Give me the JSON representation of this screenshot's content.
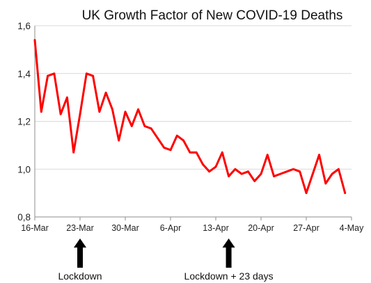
{
  "chart_data": {
    "type": "line",
    "title": "UK Growth Factor of New COVID-19 Deaths",
    "xlabel": "",
    "ylabel": "",
    "ylim": [
      0.8,
      1.6
    ],
    "yticks": [
      "0,8",
      "1,0",
      "1,2",
      "1,4",
      "1,6"
    ],
    "ytick_values": [
      0.8,
      1.0,
      1.2,
      1.4,
      1.6
    ],
    "xlim": [
      0,
      49
    ],
    "xticks": [
      {
        "day": 0,
        "label": "16-Mar"
      },
      {
        "day": 7,
        "label": "23-Mar"
      },
      {
        "day": 14,
        "label": "30-Mar"
      },
      {
        "day": 21,
        "label": "6-Apr"
      },
      {
        "day": 28,
        "label": "13-Apr"
      },
      {
        "day": 35,
        "label": "20-Apr"
      },
      {
        "day": 42,
        "label": "27-Apr"
      },
      {
        "day": 49,
        "label": "4-May"
      }
    ],
    "grid": true,
    "legend": "none",
    "series": [
      {
        "color": "#ff0000",
        "x": [
          0,
          1,
          2,
          3,
          4,
          5,
          6,
          7,
          8,
          9,
          10,
          11,
          12,
          13,
          14,
          15,
          16,
          17,
          18,
          19,
          20,
          21,
          22,
          23,
          24,
          25,
          26,
          27,
          28,
          29,
          30,
          31,
          32,
          33,
          34,
          35,
          36,
          37,
          38,
          39,
          40,
          41,
          42,
          43,
          44,
          45,
          46,
          47,
          48
        ],
        "values": [
          1.54,
          1.24,
          1.39,
          1.4,
          1.23,
          1.3,
          1.07,
          1.23,
          1.4,
          1.39,
          1.24,
          1.32,
          1.25,
          1.12,
          1.24,
          1.18,
          1.25,
          1.18,
          1.17,
          1.13,
          1.09,
          1.08,
          1.14,
          1.12,
          1.07,
          1.07,
          1.02,
          0.99,
          1.01,
          1.07,
          0.97,
          1.0,
          0.98,
          0.99,
          0.95,
          0.98,
          1.06,
          0.97,
          0.98,
          0.99,
          1.0,
          0.99,
          0.9,
          0.98,
          1.06,
          0.94,
          0.98,
          1.0,
          0.9
        ]
      }
    ],
    "annotations": [
      {
        "text": "Lockdown",
        "day": 7
      },
      {
        "text": "Lockdown + 23 days",
        "day": 30
      }
    ]
  }
}
